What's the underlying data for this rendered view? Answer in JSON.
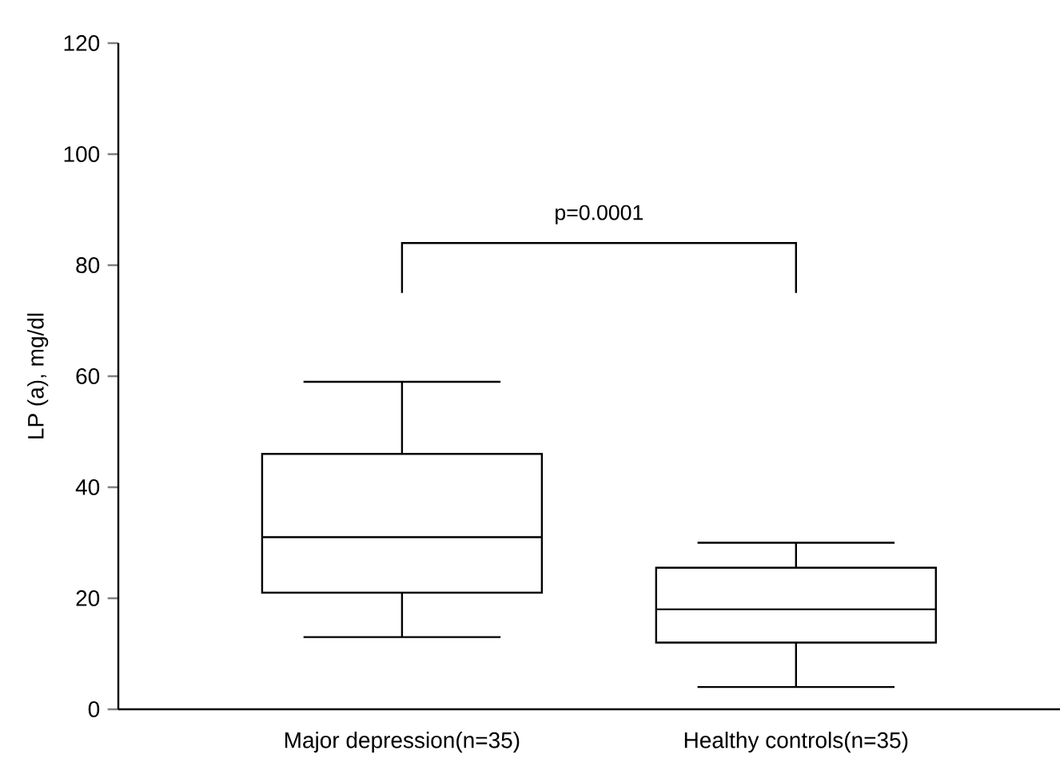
{
  "chart_data": {
    "type": "box",
    "ylabel": "LP (a), mg/dl",
    "categories": [
      "Major depression(n=35)",
      "Healthy controls(n=35)"
    ],
    "boxes": [
      {
        "low": 13,
        "q1": 21,
        "median": 31,
        "q3": 46,
        "high": 59
      },
      {
        "low": 4,
        "q1": 12,
        "median": 18,
        "q3": 25.5,
        "high": 30
      }
    ],
    "ylim": [
      0,
      120
    ],
    "yticks": [
      0,
      20,
      40,
      60,
      80,
      100,
      120
    ],
    "annotations": [
      "p=0.0001"
    ]
  }
}
